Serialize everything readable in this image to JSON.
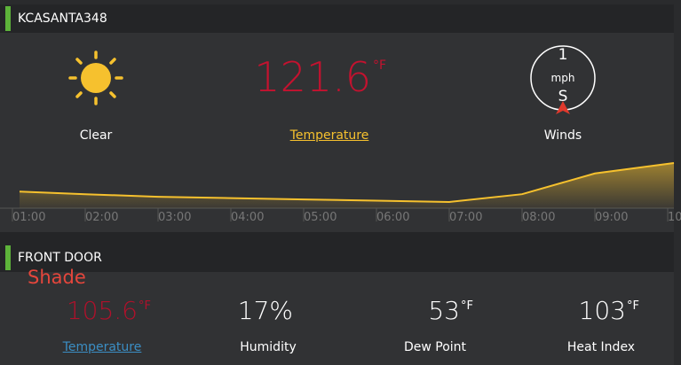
{
  "station": {
    "title": "KCASANTA348",
    "condition": "Clear",
    "temperature": {
      "value": "121.6",
      "unit": "°F",
      "label": "Temperature"
    },
    "wind": {
      "speed": "1",
      "unit": "mph",
      "direction": "S",
      "label": "Winds"
    }
  },
  "sparkline": {
    "x": [
      "01:00",
      "02:00",
      "03:00",
      "04:00",
      "05:00",
      "06:00",
      "07:00",
      "08:00",
      "09:00",
      "10"
    ],
    "values": [
      70,
      69,
      68,
      67.5,
      67,
      66.5,
      66,
      69,
      77,
      81
    ],
    "color": "#f6c12e"
  },
  "sensor": {
    "title": "FRONT DOOR",
    "location": "Shade",
    "items": [
      {
        "value": "105.6",
        "unit": "°F",
        "label": "Temperature"
      },
      {
        "value": "17%",
        "label": "Humidity"
      },
      {
        "value": "53",
        "unit": "°F",
        "label": "Dew Point"
      },
      {
        "value": "103",
        "unit": "°F",
        "label": "Heat Index"
      }
    ]
  }
}
